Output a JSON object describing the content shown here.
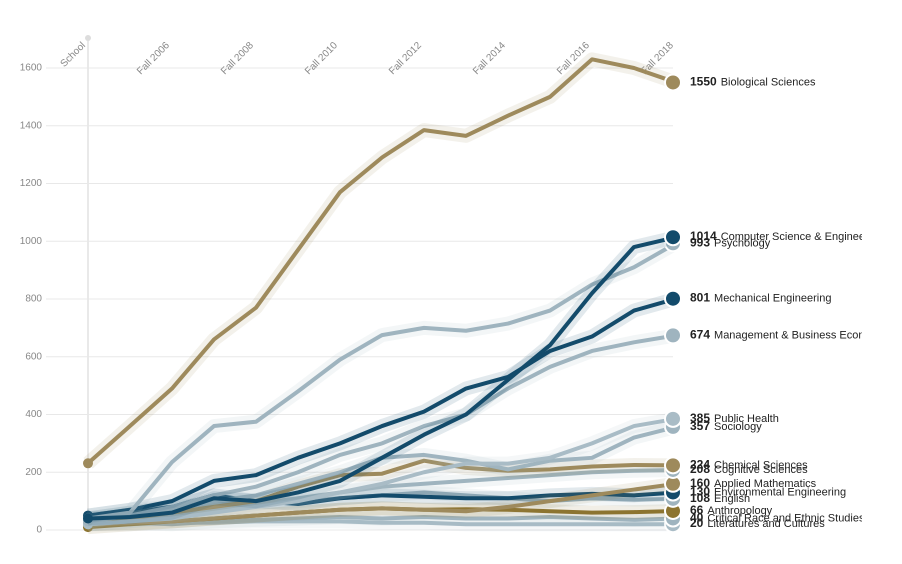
{
  "chart_data": {
    "type": "line",
    "categories": [
      "School",
      null,
      "Fall 2006",
      null,
      "Fall 2008",
      null,
      "Fall 2010",
      null,
      "Fall 2012",
      null,
      "Fall 2014",
      null,
      "Fall 2016",
      null,
      "Fall 2018"
    ],
    "ylim": [
      0,
      1600
    ],
    "yticks": [
      0,
      200,
      400,
      600,
      800,
      1000,
      1200,
      1400,
      1600
    ],
    "grid": true,
    "series": [
      {
        "name": "Literatures and Cultures",
        "color": "#a9bcc6",
        "values": [
          20,
          20,
          25,
          25,
          30,
          30,
          30,
          25,
          25,
          20,
          20,
          20,
          20,
          20,
          20
        ]
      },
      {
        "name": "Critical Race and Ethnic Studies",
        "color": "#9fb4bf",
        "values": [
          20,
          25,
          20,
          30,
          35,
          40,
          45,
          40,
          45,
          40,
          40,
          45,
          40,
          35,
          40
        ]
      },
      {
        "name": "Anthropology",
        "color": "#8c7430",
        "values": [
          10,
          20,
          30,
          40,
          50,
          60,
          70,
          75,
          70,
          72,
          70,
          65,
          60,
          62,
          66
        ]
      },
      {
        "name": "English",
        "color": "#9fb4bf",
        "values": [
          50,
          70,
          80,
          90,
          95,
          100,
          110,
          120,
          130,
          120,
          110,
          100,
          110,
          105,
          108
        ]
      },
      {
        "name": "Environmental Engineering",
        "color": "#134b6b",
        "values": [
          40,
          60,
          80,
          120,
          100,
          90,
          110,
          120,
          115,
          110,
          110,
          120,
          125,
          120,
          130
        ]
      },
      {
        "name": "Applied Mathematics",
        "color": "#9e8a5c",
        "values": [
          20,
          25,
          30,
          40,
          50,
          60,
          70,
          75,
          70,
          65,
          80,
          100,
          120,
          140,
          160
        ]
      },
      {
        "name": "Cognitive Sciences",
        "color": "#9fb4bf",
        "values": [
          20,
          30,
          50,
          70,
          90,
          110,
          130,
          150,
          160,
          170,
          180,
          190,
          200,
          205,
          208
        ]
      },
      {
        "name": "Chemical Sciences",
        "color": "#9e8a5c",
        "values": [
          30,
          40,
          60,
          80,
          100,
          150,
          190,
          195,
          240,
          215,
          205,
          210,
          220,
          225,
          224
        ]
      },
      {
        "name": "Sociology",
        "color": "#9fb4bf",
        "values": [
          30,
          50,
          70,
          100,
          120,
          160,
          200,
          250,
          260,
          240,
          210,
          240,
          250,
          320,
          357
        ]
      },
      {
        "name": "Public Health",
        "color": "#a9bcc6",
        "values": [
          20,
          30,
          40,
          60,
          80,
          100,
          130,
          160,
          200,
          230,
          230,
          250,
          300,
          360,
          385
        ]
      },
      {
        "name": "Management & Business Econ",
        "color": "#9fb4bf",
        "values": [
          30,
          50,
          80,
          120,
          150,
          200,
          260,
          300,
          360,
          400,
          490,
          565,
          620,
          650,
          674
        ]
      },
      {
        "name": "Mechanical Engineering",
        "color": "#134b6b",
        "values": [
          50,
          70,
          100,
          170,
          190,
          250,
          300,
          360,
          410,
          490,
          530,
          620,
          670,
          760,
          801
        ]
      },
      {
        "name": "Psychology",
        "color": "#9fb4bf",
        "values": [
          40,
          60,
          235,
          360,
          375,
          480,
          590,
          675,
          700,
          690,
          715,
          760,
          850,
          910,
          993
        ]
      },
      {
        "name": "Computer Science & Enginee",
        "color": "#134b6b",
        "values": [
          40,
          45,
          60,
          110,
          100,
          130,
          170,
          250,
          330,
          400,
          520,
          640,
          820,
          980,
          1014
        ]
      },
      {
        "name": "Biological Sciences",
        "color": "#9e8a5c",
        "values": [
          231,
          360,
          490,
          660,
          770,
          970,
          1170,
          1290,
          1385,
          1365,
          1435,
          1500,
          1630,
          1600,
          1550
        ]
      }
    ]
  }
}
